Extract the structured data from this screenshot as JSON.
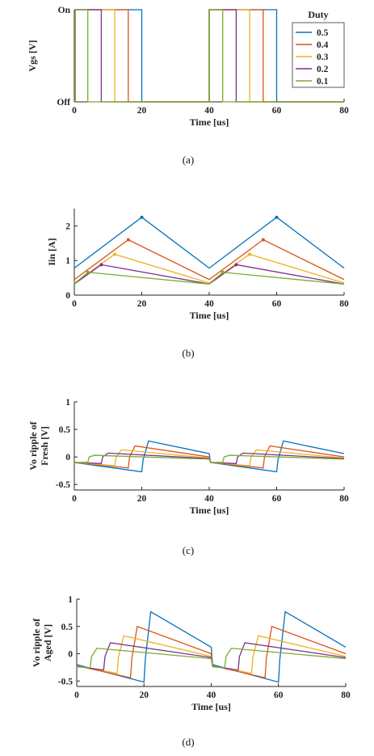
{
  "figure": {
    "colors": [
      "#0072BD",
      "#D95319",
      "#EDB120",
      "#7E2F8E",
      "#77AC30"
    ]
  },
  "chart_data": [
    {
      "type": "line",
      "panel_caption": "(a)",
      "xlabel": "Time [us]",
      "ylabel": "Vgs [V]",
      "xlim": [
        0,
        80
      ],
      "ylim": [
        0,
        1
      ],
      "xticks": [
        0,
        20,
        40,
        60,
        80
      ],
      "y_tick_labels": [
        "Off",
        "On"
      ],
      "legend": {
        "title": "Duty",
        "position": "top-right"
      },
      "series": [
        {
          "name": "0.5",
          "duty": 0.5
        },
        {
          "name": "0.4",
          "duty": 0.4
        },
        {
          "name": "0.3",
          "duty": 0.3
        },
        {
          "name": "0.2",
          "duty": 0.2
        },
        {
          "name": "0.1",
          "duty": 0.1
        }
      ],
      "period": 40
    },
    {
      "type": "line",
      "panel_caption": "(b)",
      "xlabel": "Time [us]",
      "ylabel": "Iin [A]",
      "xlim": [
        0,
        80
      ],
      "ylim": [
        0,
        2.5
      ],
      "xticks": [
        0,
        20,
        40,
        60,
        80
      ],
      "yticks": [
        0,
        1,
        2
      ],
      "series": [
        {
          "duty": 0.5,
          "x": [
            0,
            20,
            40,
            60,
            80
          ],
          "y": [
            0.78,
            2.25,
            0.78,
            2.25,
            0.78
          ]
        },
        {
          "duty": 0.4,
          "x": [
            0,
            16,
            40,
            56,
            80
          ],
          "y": [
            0.45,
            1.6,
            0.45,
            1.6,
            0.45
          ]
        },
        {
          "duty": 0.3,
          "x": [
            0,
            12,
            40,
            52,
            80
          ],
          "y": [
            0.35,
            1.18,
            0.35,
            1.18,
            0.35
          ]
        },
        {
          "duty": 0.2,
          "x": [
            0,
            8,
            40,
            48,
            80
          ],
          "y": [
            0.32,
            0.88,
            0.32,
            0.88,
            0.32
          ]
        },
        {
          "duty": 0.1,
          "x": [
            0,
            4,
            40,
            44,
            80
          ],
          "y": [
            0.32,
            0.66,
            0.32,
            0.66,
            0.32
          ]
        }
      ]
    },
    {
      "type": "line",
      "panel_caption": "(c)",
      "xlabel": "Time [us]",
      "ylabel": "Vo ripple of Fresh [V]",
      "xlim": [
        0,
        80
      ],
      "ylim": [
        -0.6,
        1
      ],
      "xticks": [
        0,
        20,
        40,
        60,
        80
      ],
      "yticks": [
        -0.5,
        0,
        0.5,
        1
      ],
      "series": [
        {
          "duty": 0.5,
          "x": [
            0,
            20,
            20.4,
            22,
            40,
            40.4,
            60,
            60.4,
            62,
            80
          ],
          "y": [
            -0.1,
            -0.27,
            -0.05,
            0.29,
            0.06,
            -0.1,
            -0.27,
            -0.05,
            0.29,
            0.06
          ]
        },
        {
          "duty": 0.4,
          "x": [
            0,
            16,
            16.4,
            18,
            40,
            40.4,
            56,
            56.4,
            58,
            80
          ],
          "y": [
            -0.1,
            -0.2,
            0,
            0.2,
            0,
            -0.1,
            -0.2,
            0,
            0.2,
            0
          ]
        },
        {
          "duty": 0.3,
          "x": [
            0,
            12,
            12.4,
            14,
            40,
            40.4,
            52,
            52.4,
            54,
            80
          ],
          "y": [
            -0.1,
            -0.16,
            0,
            0.13,
            -0.02,
            -0.1,
            -0.16,
            0,
            0.13,
            -0.02
          ]
        },
        {
          "duty": 0.2,
          "x": [
            0,
            8,
            8.4,
            10,
            40,
            40.4,
            48,
            48.4,
            50,
            80
          ],
          "y": [
            -0.1,
            -0.12,
            0,
            0.07,
            -0.03,
            -0.1,
            -0.12,
            0,
            0.07,
            -0.03
          ]
        },
        {
          "duty": 0.1,
          "x": [
            0,
            4,
            4.4,
            6,
            40,
            40.4,
            44,
            44.4,
            46,
            80
          ],
          "y": [
            -0.1,
            -0.1,
            0,
            0.03,
            -0.04,
            -0.1,
            -0.1,
            0,
            0.03,
            -0.04
          ]
        }
      ]
    },
    {
      "type": "line",
      "panel_caption": "(d)",
      "xlabel": "Time [us]",
      "ylabel": "Vo ripple of Aged [V]",
      "xlim": [
        0,
        80
      ],
      "ylim": [
        -0.6,
        1
      ],
      "xticks": [
        0,
        20,
        40,
        60,
        80
      ],
      "yticks": [
        -0.5,
        0,
        0.5,
        1
      ],
      "series": [
        {
          "duty": 0.5,
          "x": [
            0,
            20,
            20.4,
            22,
            40,
            40.4,
            60,
            60.4,
            62,
            80
          ],
          "y": [
            -0.2,
            -0.52,
            -0.1,
            0.77,
            0.12,
            -0.2,
            -0.52,
            -0.1,
            0.77,
            0.12
          ]
        },
        {
          "duty": 0.4,
          "x": [
            0,
            16,
            16.4,
            18,
            40,
            40.4,
            56,
            56.4,
            58,
            80
          ],
          "y": [
            -0.22,
            -0.44,
            -0.08,
            0.5,
            0,
            -0.22,
            -0.44,
            -0.08,
            0.5,
            0
          ]
        },
        {
          "duty": 0.3,
          "x": [
            0,
            12,
            12.4,
            14,
            40,
            40.4,
            52,
            52.4,
            54,
            80
          ],
          "y": [
            -0.22,
            -0.36,
            -0.06,
            0.33,
            -0.05,
            -0.22,
            -0.36,
            -0.06,
            0.33,
            -0.05
          ]
        },
        {
          "duty": 0.2,
          "x": [
            0,
            8,
            8.4,
            10,
            40,
            40.4,
            48,
            48.4,
            50,
            80
          ],
          "y": [
            -0.23,
            -0.3,
            -0.05,
            0.2,
            -0.07,
            -0.23,
            -0.3,
            -0.05,
            0.2,
            -0.07
          ]
        },
        {
          "duty": 0.1,
          "x": [
            0,
            4,
            4.4,
            6,
            40,
            40.4,
            44,
            44.4,
            46,
            80
          ],
          "y": [
            -0.24,
            -0.26,
            -0.05,
            0.1,
            -0.09,
            -0.24,
            -0.26,
            -0.05,
            0.1,
            -0.09
          ]
        }
      ]
    }
  ]
}
